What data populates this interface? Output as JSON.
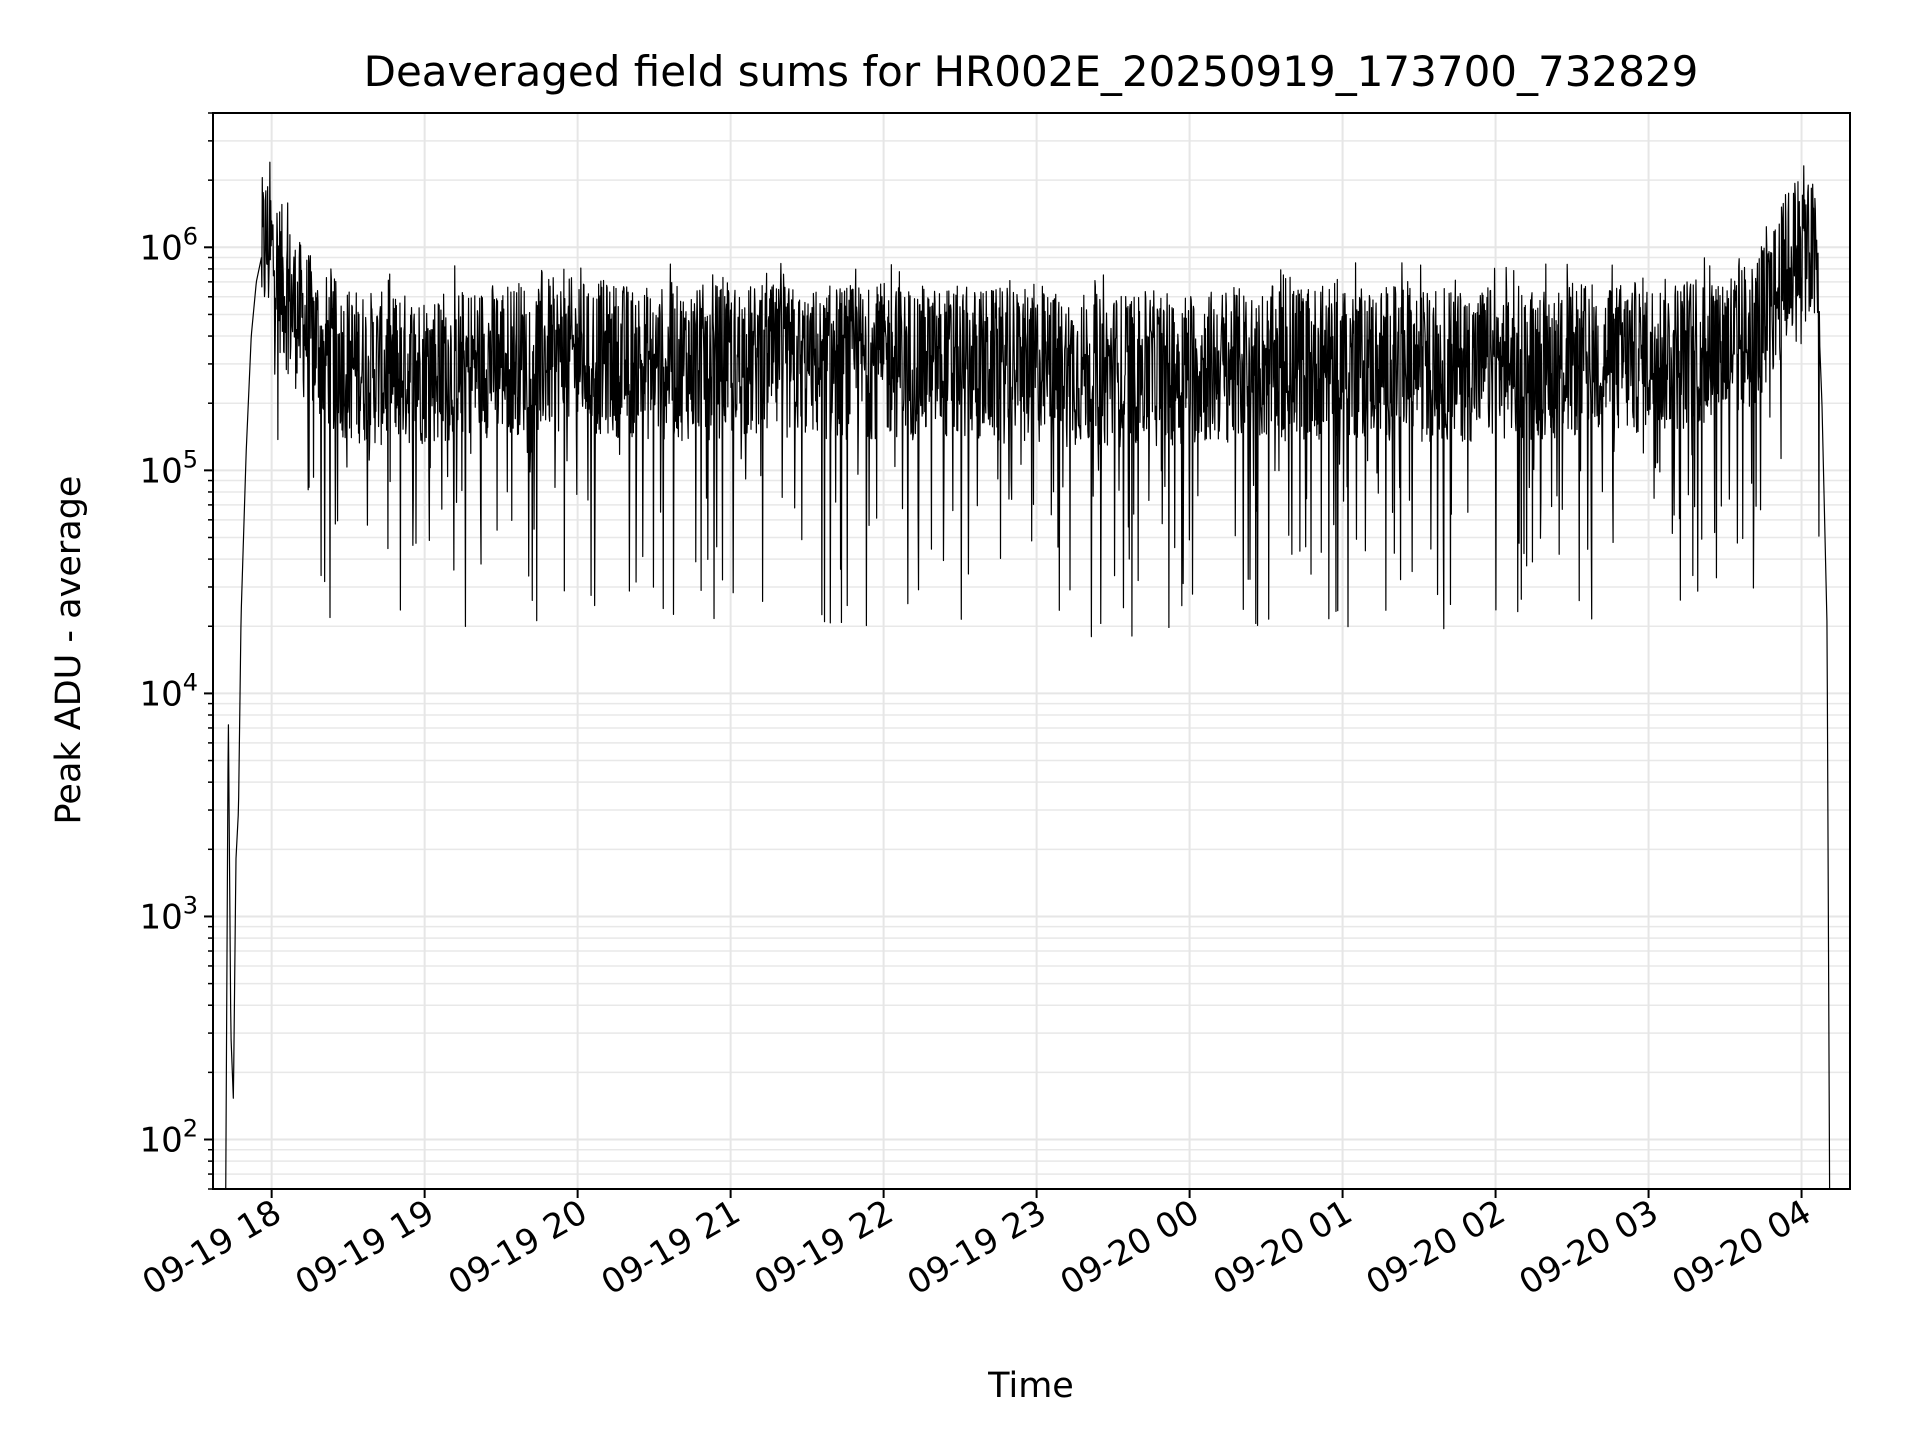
{
  "chart_data": {
    "type": "line",
    "title": "Deaveraged field sums for HR002E_20250919_173700_732829",
    "xlabel": "Time",
    "ylabel": "Peak ADU - average",
    "yscale": "log",
    "ylim": [
      60,
      4000000
    ],
    "xlim": [
      "2025-09-19 17:37",
      "2025-09-20 04:19"
    ],
    "grid": true,
    "line_color": "#000000",
    "x_ticks": [
      {
        "t": "2025-09-19 18:00",
        "label": "09-19 18"
      },
      {
        "t": "2025-09-19 19:00",
        "label": "09-19 19"
      },
      {
        "t": "2025-09-19 20:00",
        "label": "09-19 20"
      },
      {
        "t": "2025-09-19 21:00",
        "label": "09-19 21"
      },
      {
        "t": "2025-09-19 22:00",
        "label": "09-19 22"
      },
      {
        "t": "2025-09-19 23:00",
        "label": "09-19 23"
      },
      {
        "t": "2025-09-20 00:00",
        "label": "09-20 00"
      },
      {
        "t": "2025-09-20 01:00",
        "label": "09-20 01"
      },
      {
        "t": "2025-09-20 02:00",
        "label": "09-20 02"
      },
      {
        "t": "2025-09-20 03:00",
        "label": "09-20 03"
      },
      {
        "t": "2025-09-20 04:00",
        "label": "09-20 04"
      }
    ],
    "y_ticks": [
      {
        "value": 100,
        "base": "10",
        "exp": "2"
      },
      {
        "value": 1000,
        "base": "10",
        "exp": "3"
      },
      {
        "value": 10000,
        "base": "10",
        "exp": "4"
      },
      {
        "value": 100000,
        "base": "10",
        "exp": "5"
      },
      {
        "value": 1000000,
        "base": "10",
        "exp": "6"
      }
    ],
    "series": [
      {
        "x": [
          "2025-09-19 17:42",
          "2025-09-19 17:43",
          "2025-09-19 17:44",
          "2025-09-19 17:45",
          "2025-09-19 17:46",
          "2025-09-19 17:47",
          "2025-09-19 17:48",
          "2025-09-19 17:50",
          "2025-09-19 17:52",
          "2025-09-19 17:54",
          "2025-09-19 17:56",
          "2025-09-19 17:58",
          "2025-09-19 18:00",
          "2025-09-19 18:05",
          "2025-09-19 18:10",
          "2025-09-19 18:20",
          "2025-09-19 18:30",
          "2025-09-19 18:45",
          "2025-09-19 19:00",
          "2025-09-19 19:15",
          "2025-09-19 19:30",
          "2025-09-19 20:00",
          "2025-09-19 20:30",
          "2025-09-19 21:00",
          "2025-09-19 21:30",
          "2025-09-19 22:00",
          "2025-09-19 22:30",
          "2025-09-19 23:00",
          "2025-09-19 23:30",
          "2025-09-20 00:00",
          "2025-09-20 00:30",
          "2025-09-20 01:00",
          "2025-09-20 01:30",
          "2025-09-20 02:00",
          "2025-09-20 02:30",
          "2025-09-20 03:00",
          "2025-09-20 03:20",
          "2025-09-20 03:40",
          "2025-09-20 03:50",
          "2025-09-20 03:55",
          "2025-09-20 04:00",
          "2025-09-20 04:03",
          "2025-09-20 04:06",
          "2025-09-20 04:08",
          "2025-09-20 04:10",
          "2025-09-20 04:11"
        ],
        "y": [
          60,
          8500,
          300,
          150,
          1800,
          3000,
          22000,
          120000,
          400000,
          700000,
          900000,
          1050000,
          950000,
          650000,
          500000,
          350000,
          300000,
          280000,
          290000,
          300000,
          320000,
          330000,
          300000,
          310000,
          300000,
          310000,
          300000,
          290000,
          280000,
          290000,
          300000,
          310000,
          300000,
          300000,
          310000,
          320000,
          340000,
          400000,
          600000,
          850000,
          1050000,
          1000000,
          800000,
          200000,
          20000,
          60
        ]
      }
    ]
  }
}
